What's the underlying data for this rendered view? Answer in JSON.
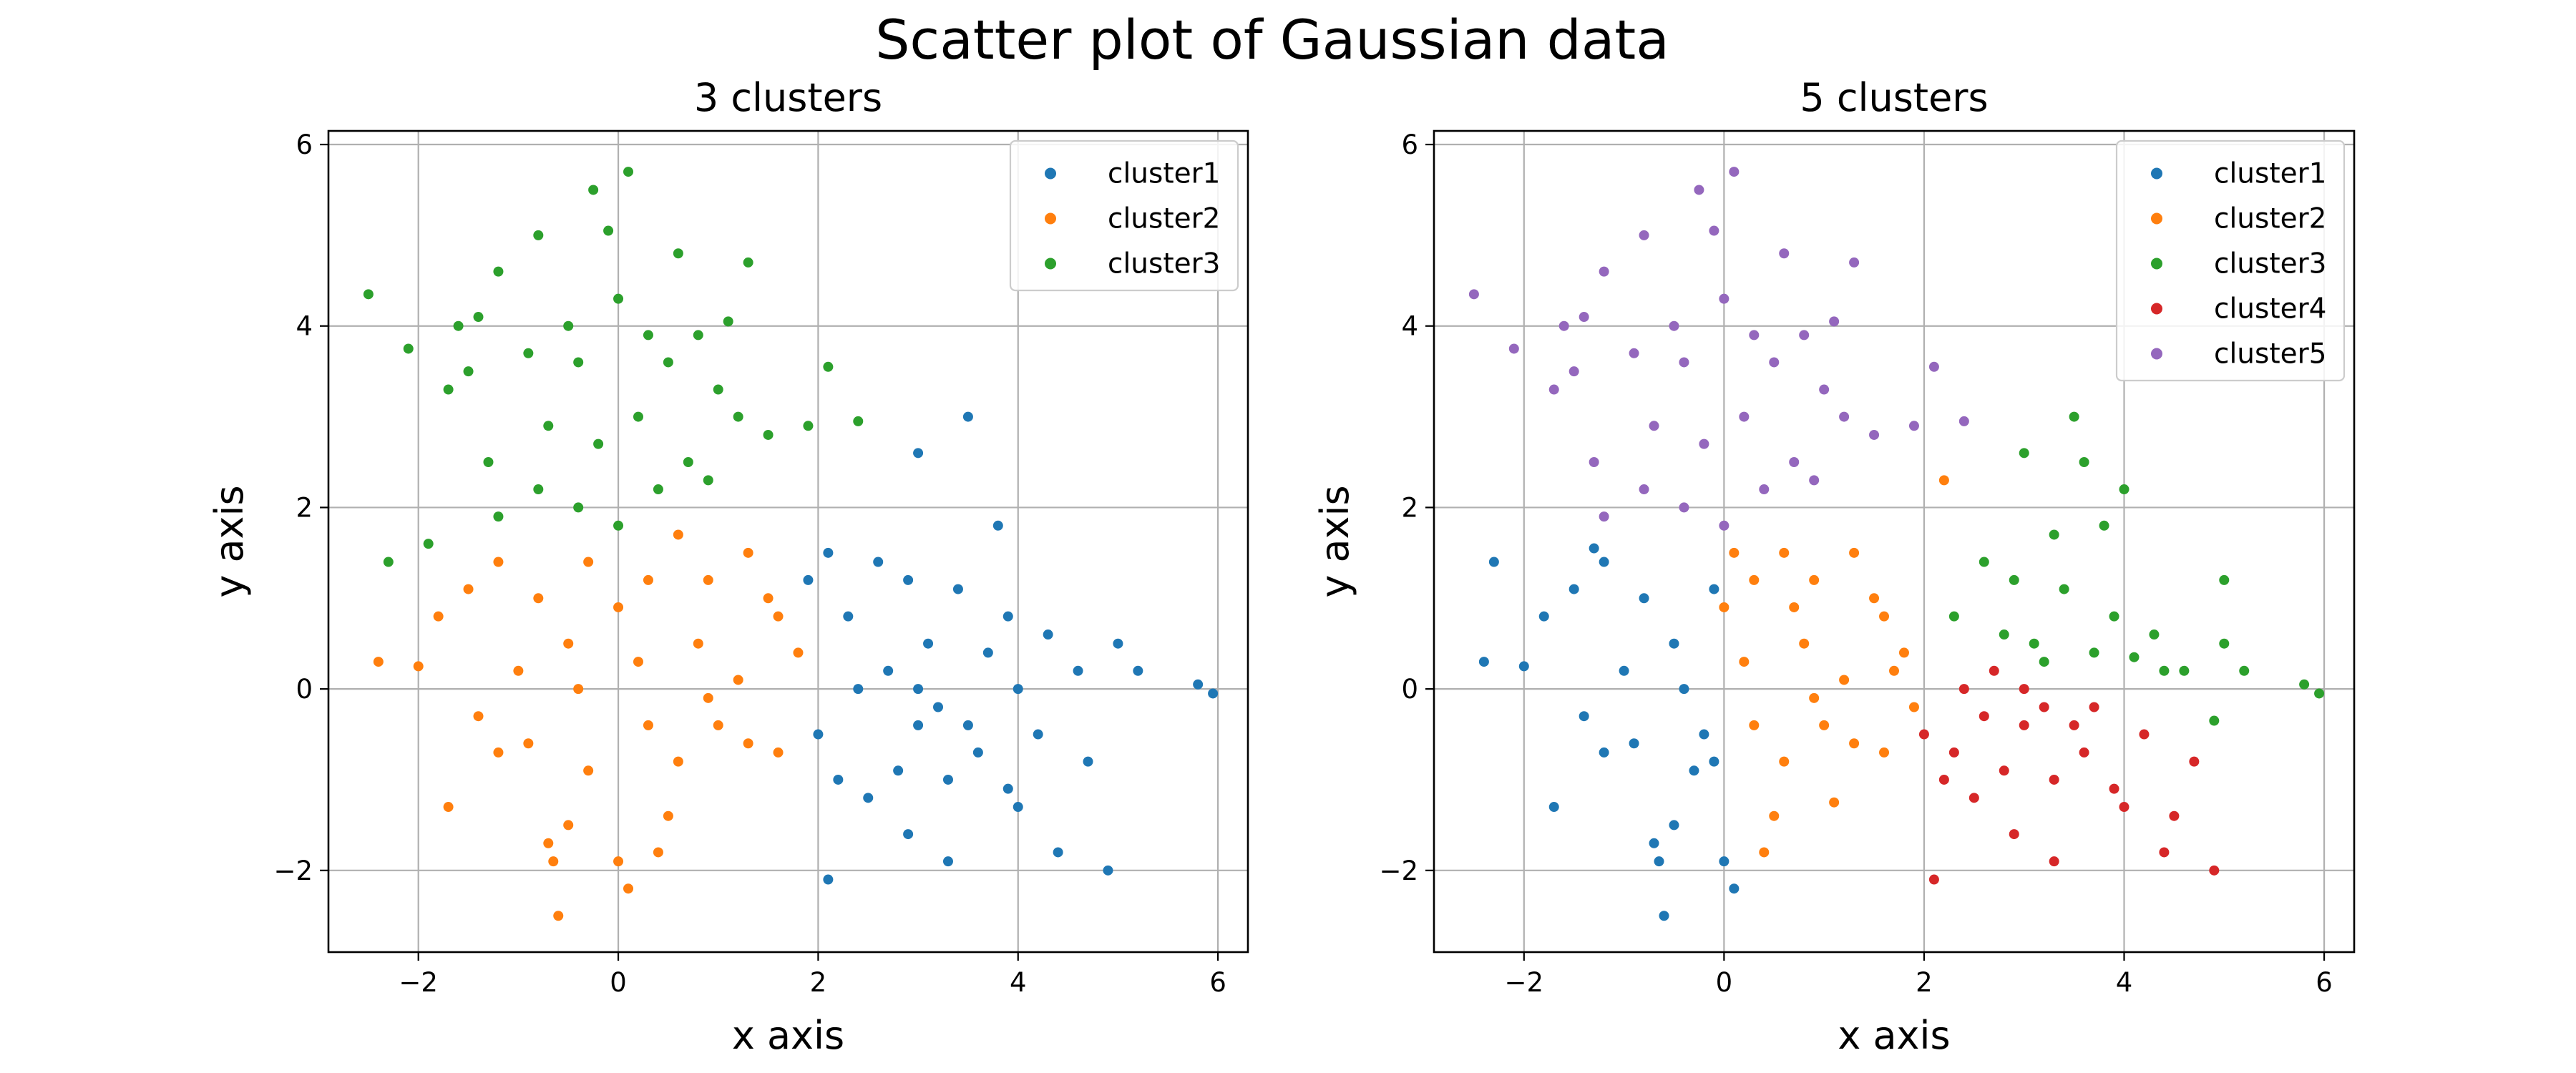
{
  "figure": {
    "title": "Scatter plot of Gaussian data"
  },
  "chart_data": [
    {
      "type": "scatter",
      "title": "3 clusters",
      "xlabel": "x axis",
      "ylabel": "y axis",
      "xlim": [
        -2.9,
        6.3
      ],
      "ylim": [
        -2.9,
        6.15
      ],
      "xticks": [
        -2,
        0,
        2,
        4,
        6
      ],
      "yticks": [
        -2,
        0,
        2,
        4,
        6
      ],
      "grid": true,
      "legend": "top-right",
      "series": [
        {
          "name": "cluster1",
          "color": "#1f77b4",
          "points": [
            [
              1.9,
              1.2
            ],
            [
              2.1,
              1.5
            ],
            [
              2.3,
              0.8
            ],
            [
              2.6,
              1.4
            ],
            [
              2.9,
              1.2
            ],
            [
              3.1,
              0.5
            ],
            [
              3.4,
              1.1
            ],
            [
              3.8,
              1.8
            ],
            [
              3.9,
              0.8
            ],
            [
              4.0,
              0.0
            ],
            [
              4.3,
              0.6
            ],
            [
              4.6,
              0.2
            ],
            [
              5.0,
              0.5
            ],
            [
              5.2,
              0.2
            ],
            [
              5.8,
              0.05
            ],
            [
              5.95,
              -0.05
            ],
            [
              2.0,
              -0.5
            ],
            [
              2.2,
              -1.0
            ],
            [
              2.5,
              -1.2
            ],
            [
              2.8,
              -0.9
            ],
            [
              3.0,
              -0.4
            ],
            [
              3.3,
              -1.0
            ],
            [
              3.6,
              -0.7
            ],
            [
              4.0,
              -1.3
            ],
            [
              4.4,
              -1.8
            ],
            [
              4.9,
              -2.0
            ],
            [
              2.1,
              -2.1
            ],
            [
              3.3,
              -1.9
            ],
            [
              3.0,
              2.6
            ],
            [
              3.5,
              3.0
            ],
            [
              2.7,
              0.2
            ],
            [
              3.2,
              -0.2
            ],
            [
              3.7,
              0.4
            ],
            [
              4.2,
              -0.5
            ],
            [
              4.7,
              -0.8
            ],
            [
              2.4,
              0.0
            ],
            [
              3.0,
              0.0
            ],
            [
              3.5,
              -0.4
            ],
            [
              2.9,
              -1.6
            ],
            [
              3.9,
              -1.1
            ]
          ]
        },
        {
          "name": "cluster2",
          "color": "#ff7f0e",
          "points": [
            [
              -2.4,
              0.3
            ],
            [
              -2.0,
              0.25
            ],
            [
              -1.8,
              0.8
            ],
            [
              -1.5,
              1.1
            ],
            [
              -1.2,
              1.4
            ],
            [
              -0.8,
              1.0
            ],
            [
              -0.5,
              0.5
            ],
            [
              -0.3,
              1.4
            ],
            [
              0.0,
              0.9
            ],
            [
              0.3,
              1.2
            ],
            [
              0.6,
              1.7
            ],
            [
              0.9,
              1.2
            ],
            [
              1.3,
              1.5
            ],
            [
              1.6,
              0.8
            ],
            [
              1.8,
              0.4
            ],
            [
              -1.7,
              -1.3
            ],
            [
              -1.2,
              -0.7
            ],
            [
              -0.7,
              -1.7
            ],
            [
              -0.65,
              -1.9
            ],
            [
              -0.6,
              -2.5
            ],
            [
              -0.5,
              -1.5
            ],
            [
              -0.3,
              -0.9
            ],
            [
              0.0,
              -1.9
            ],
            [
              0.1,
              -2.2
            ],
            [
              0.3,
              -0.4
            ],
            [
              0.6,
              -0.8
            ],
            [
              1.0,
              -0.4
            ],
            [
              1.3,
              -0.6
            ],
            [
              1.6,
              -0.7
            ],
            [
              -1.0,
              0.2
            ],
            [
              -0.4,
              0.0
            ],
            [
              0.2,
              0.3
            ],
            [
              0.8,
              0.5
            ],
            [
              1.2,
              0.1
            ],
            [
              -1.4,
              -0.3
            ],
            [
              0.5,
              -1.4
            ],
            [
              1.5,
              1.0
            ],
            [
              -0.9,
              -0.6
            ],
            [
              0.4,
              -1.8
            ],
            [
              0.9,
              -0.1
            ]
          ]
        },
        {
          "name": "cluster3",
          "color": "#2ca02c",
          "points": [
            [
              -2.5,
              4.35
            ],
            [
              -2.1,
              3.75
            ],
            [
              -1.9,
              1.6
            ],
            [
              -2.3,
              1.4
            ],
            [
              -1.6,
              4.0
            ],
            [
              -1.4,
              4.1
            ],
            [
              -1.2,
              4.6
            ],
            [
              -0.8,
              5.0
            ],
            [
              -0.25,
              5.5
            ],
            [
              0.1,
              5.7
            ],
            [
              -0.1,
              5.05
            ],
            [
              0.6,
              4.8
            ],
            [
              1.3,
              4.7
            ],
            [
              1.1,
              4.05
            ],
            [
              0.8,
              3.9
            ],
            [
              0.3,
              3.9
            ],
            [
              -0.4,
              3.6
            ],
            [
              -0.9,
              3.7
            ],
            [
              -1.5,
              3.5
            ],
            [
              -1.7,
              3.3
            ],
            [
              -1.3,
              2.5
            ],
            [
              -0.7,
              2.9
            ],
            [
              -0.2,
              2.7
            ],
            [
              0.2,
              3.0
            ],
            [
              0.7,
              2.5
            ],
            [
              1.2,
              3.0
            ],
            [
              1.5,
              2.8
            ],
            [
              1.9,
              2.9
            ],
            [
              2.1,
              3.55
            ],
            [
              2.4,
              2.95
            ],
            [
              -1.2,
              1.9
            ],
            [
              -0.8,
              2.2
            ],
            [
              -0.4,
              2.0
            ],
            [
              0.0,
              1.8
            ],
            [
              0.4,
              2.2
            ],
            [
              0.9,
              2.3
            ],
            [
              -0.5,
              4.0
            ],
            [
              0.0,
              4.3
            ],
            [
              0.5,
              3.6
            ],
            [
              1.0,
              3.3
            ]
          ]
        }
      ]
    },
    {
      "type": "scatter",
      "title": "5 clusters",
      "xlabel": "x axis",
      "ylabel": "y axis",
      "xlim": [
        -2.9,
        6.3
      ],
      "ylim": [
        -2.9,
        6.15
      ],
      "xticks": [
        -2,
        0,
        2,
        4,
        6
      ],
      "yticks": [
        -2,
        0,
        2,
        4,
        6
      ],
      "grid": true,
      "legend": "top-right",
      "series": [
        {
          "name": "cluster1",
          "color": "#1f77b4",
          "points": [
            [
              -2.4,
              0.3
            ],
            [
              -2.0,
              0.25
            ],
            [
              -1.8,
              0.8
            ],
            [
              -1.5,
              1.1
            ],
            [
              -1.2,
              1.4
            ],
            [
              -0.8,
              1.0
            ],
            [
              -0.5,
              0.5
            ],
            [
              -1.7,
              -1.3
            ],
            [
              -1.2,
              -0.7
            ],
            [
              -0.7,
              -1.7
            ],
            [
              -0.65,
              -1.9
            ],
            [
              -0.6,
              -2.5
            ],
            [
              -0.5,
              -1.5
            ],
            [
              -0.3,
              -0.9
            ],
            [
              0.0,
              -1.9
            ],
            [
              0.1,
              -2.2
            ],
            [
              -1.0,
              0.2
            ],
            [
              -0.4,
              0.0
            ],
            [
              -1.4,
              -0.3
            ],
            [
              -0.9,
              -0.6
            ],
            [
              -2.3,
              1.4
            ],
            [
              -1.3,
              1.55
            ],
            [
              -0.1,
              1.1
            ],
            [
              -0.2,
              -0.5
            ],
            [
              -0.1,
              -0.8
            ]
          ]
        },
        {
          "name": "cluster2",
          "color": "#ff7f0e",
          "points": [
            [
              0.0,
              0.9
            ],
            [
              0.3,
              1.2
            ],
            [
              0.6,
              1.5
            ],
            [
              0.9,
              1.2
            ],
            [
              1.3,
              1.5
            ],
            [
              1.6,
              0.8
            ],
            [
              1.8,
              0.4
            ],
            [
              0.3,
              -0.4
            ],
            [
              0.6,
              -0.8
            ],
            [
              1.0,
              -0.4
            ],
            [
              1.3,
              -0.6
            ],
            [
              1.6,
              -0.7
            ],
            [
              0.2,
              0.3
            ],
            [
              0.8,
              0.5
            ],
            [
              1.2,
              0.1
            ],
            [
              0.5,
              -1.4
            ],
            [
              1.5,
              1.0
            ],
            [
              0.4,
              -1.8
            ],
            [
              0.9,
              -0.1
            ],
            [
              2.2,
              2.3
            ],
            [
              1.9,
              -0.2
            ],
            [
              1.1,
              -1.25
            ],
            [
              0.1,
              1.5
            ],
            [
              1.7,
              0.2
            ],
            [
              0.7,
              0.9
            ]
          ]
        },
        {
          "name": "cluster3",
          "color": "#2ca02c",
          "points": [
            [
              2.3,
              0.8
            ],
            [
              2.6,
              1.4
            ],
            [
              2.9,
              1.2
            ],
            [
              3.1,
              0.5
            ],
            [
              3.4,
              1.1
            ],
            [
              3.8,
              1.8
            ],
            [
              3.9,
              0.8
            ],
            [
              4.3,
              0.6
            ],
            [
              4.6,
              0.2
            ],
            [
              5.0,
              0.5
            ],
            [
              5.2,
              0.2
            ],
            [
              5.8,
              0.05
            ],
            [
              5.95,
              -0.05
            ],
            [
              3.0,
              2.6
            ],
            [
              3.5,
              3.0
            ],
            [
              3.7,
              0.4
            ],
            [
              4.0,
              2.2
            ],
            [
              4.4,
              0.2
            ],
            [
              5.0,
              1.2
            ],
            [
              4.9,
              -0.35
            ],
            [
              2.8,
              0.6
            ],
            [
              3.3,
              1.7
            ],
            [
              3.6,
              2.5
            ],
            [
              4.1,
              0.35
            ],
            [
              3.2,
              0.3
            ]
          ]
        },
        {
          "name": "cluster4",
          "color": "#d62728",
          "points": [
            [
              2.0,
              -0.5
            ],
            [
              2.2,
              -1.0
            ],
            [
              2.5,
              -1.2
            ],
            [
              2.8,
              -0.9
            ],
            [
              3.0,
              -0.4
            ],
            [
              3.3,
              -1.0
            ],
            [
              3.6,
              -0.7
            ],
            [
              4.0,
              -1.3
            ],
            [
              4.4,
              -1.8
            ],
            [
              4.9,
              -2.0
            ],
            [
              2.1,
              -2.1
            ],
            [
              3.3,
              -1.9
            ],
            [
              2.7,
              0.2
            ],
            [
              3.2,
              -0.2
            ],
            [
              4.2,
              -0.5
            ],
            [
              4.7,
              -0.8
            ],
            [
              2.4,
              0.0
            ],
            [
              3.0,
              0.0
            ],
            [
              3.5,
              -0.4
            ],
            [
              2.9,
              -1.6
            ],
            [
              3.9,
              -1.1
            ],
            [
              2.6,
              -0.3
            ],
            [
              3.7,
              -0.2
            ],
            [
              4.5,
              -1.4
            ],
            [
              2.3,
              -0.7
            ]
          ]
        },
        {
          "name": "cluster5",
          "color": "#9467bd",
          "points": [
            [
              -2.5,
              4.35
            ],
            [
              -2.1,
              3.75
            ],
            [
              -1.6,
              4.0
            ],
            [
              -1.4,
              4.1
            ],
            [
              -1.2,
              4.6
            ],
            [
              -0.8,
              5.0
            ],
            [
              -0.25,
              5.5
            ],
            [
              0.1,
              5.7
            ],
            [
              -0.1,
              5.05
            ],
            [
              0.6,
              4.8
            ],
            [
              1.3,
              4.7
            ],
            [
              1.1,
              4.05
            ],
            [
              0.8,
              3.9
            ],
            [
              0.3,
              3.9
            ],
            [
              -0.4,
              3.6
            ],
            [
              -0.9,
              3.7
            ],
            [
              -1.5,
              3.5
            ],
            [
              -1.7,
              3.3
            ],
            [
              -1.3,
              2.5
            ],
            [
              -0.7,
              2.9
            ],
            [
              -0.2,
              2.7
            ],
            [
              0.2,
              3.0
            ],
            [
              0.7,
              2.5
            ],
            [
              1.2,
              3.0
            ],
            [
              1.5,
              2.8
            ],
            [
              1.9,
              2.9
            ],
            [
              2.1,
              3.55
            ],
            [
              2.4,
              2.95
            ],
            [
              -1.2,
              1.9
            ],
            [
              -0.8,
              2.2
            ],
            [
              -0.4,
              2.0
            ],
            [
              0.0,
              1.8
            ],
            [
              0.4,
              2.2
            ],
            [
              0.9,
              2.3
            ],
            [
              -0.5,
              4.0
            ],
            [
              0.0,
              4.3
            ],
            [
              0.5,
              3.6
            ],
            [
              1.0,
              3.3
            ]
          ]
        }
      ]
    }
  ]
}
